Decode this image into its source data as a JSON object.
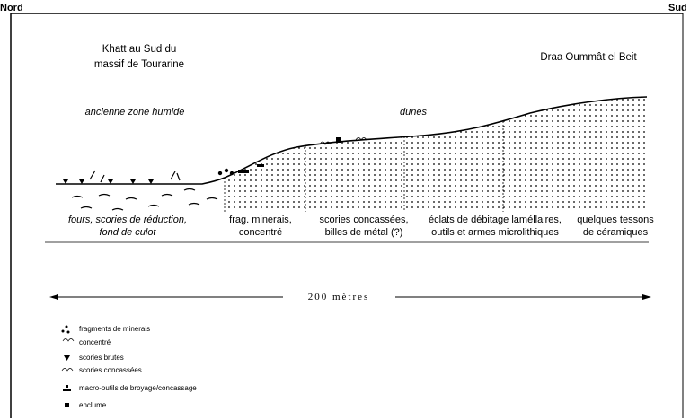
{
  "header": {
    "left": "Nord",
    "right": "Sud"
  },
  "sites": [
    {
      "lines": [
        "Khatt au Sud du",
        "massif de Tourarine"
      ]
    },
    {
      "lines": [
        "Draa Oummât el Beit"
      ]
    }
  ],
  "zones": [
    "ancienne zone humide",
    "dunes"
  ],
  "columns": [
    {
      "lines": [
        "fours, scories de réduction,",
        "fond de culot"
      ]
    },
    {
      "lines": [
        "frag. minerais,",
        "concentré"
      ]
    },
    {
      "lines": [
        "scories concassées,",
        "billes de métal (?)"
      ]
    },
    {
      "lines": [
        "éclats de débitage laméllaires,",
        "outils et armes microlithiques"
      ]
    },
    {
      "lines": [
        "quelques tessons",
        "de céramiques"
      ]
    }
  ],
  "scale": "200 mètres",
  "legend": [
    "fragments de minerais",
    "concentré",
    "scories brutes",
    "scories concassées",
    "macro-outils de broyage/concassage",
    "enclume"
  ]
}
